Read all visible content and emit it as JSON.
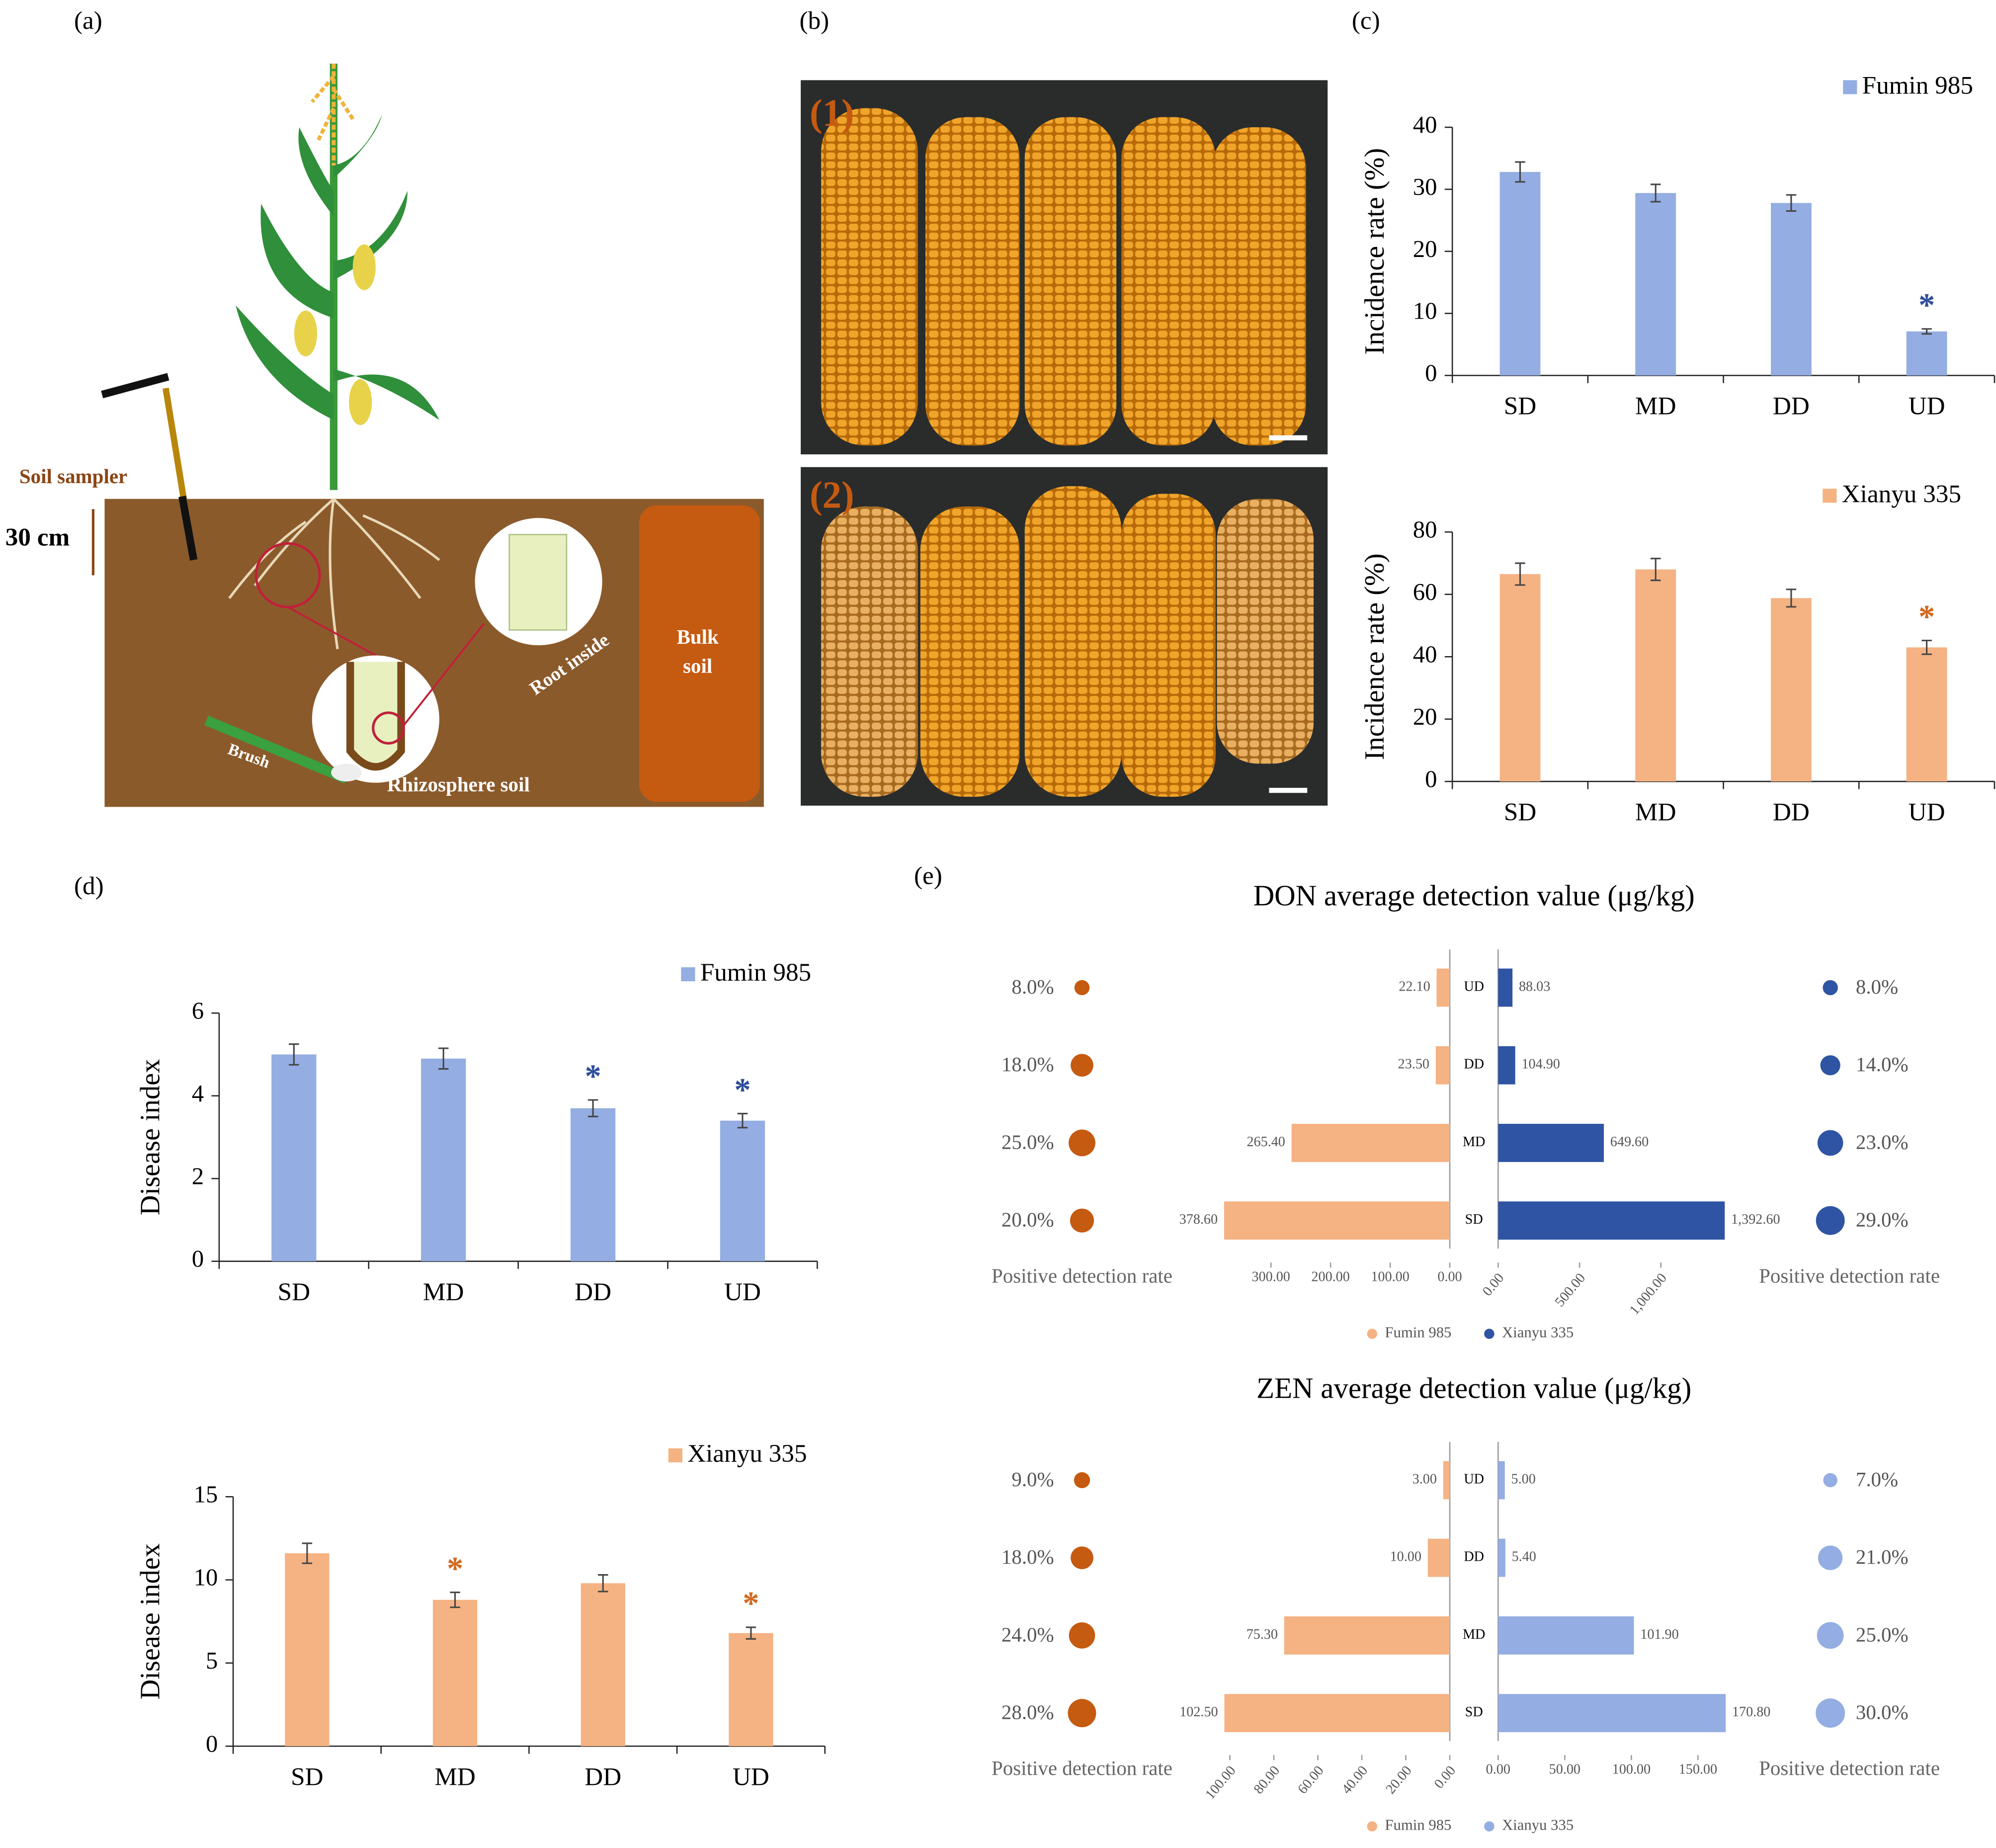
{
  "panel_labels": [
    "(a)",
    "(b)",
    "(c)",
    "(d)",
    "(e)"
  ],
  "illustration": {
    "sampler": "Soil sampler",
    "depth": "30 cm",
    "root_inside": "Root inside",
    "bulk_soil": [
      "Bulk",
      "soil"
    ],
    "brush": "Brush",
    "rhizosphere": "Rhizosphere soil"
  },
  "photo_labels": [
    "(1)",
    "(2)"
  ],
  "chart_data": [
    {
      "type": "bar",
      "ylabel": "Incidence rate (%)",
      "categories": [
        "SD",
        "MD",
        "DD",
        "UD"
      ],
      "series": [
        {
          "name": "Fumin 985",
          "color": "#94ade2",
          "values": [
            32.8,
            29.4,
            27.8,
            7.1
          ],
          "errors": [
            1.6,
            1.4,
            1.3,
            0.4
          ]
        }
      ],
      "significance": [
        null,
        null,
        null,
        "*"
      ],
      "star_color": "#2f4e9c",
      "ylim": [
        0,
        40
      ],
      "yticks": [
        0,
        10,
        20,
        30,
        40
      ]
    },
    {
      "type": "bar",
      "ylabel": "Incidence rate (%)",
      "categories": [
        "SD",
        "MD",
        "DD",
        "UD"
      ],
      "series": [
        {
          "name": "Xianyu 335",
          "color": "#f5b283",
          "values": [
            66.5,
            68,
            58.8,
            43
          ],
          "errors": [
            3.5,
            3.5,
            2.8,
            2.2
          ]
        }
      ],
      "significance": [
        null,
        null,
        null,
        "*"
      ],
      "star_color": "#d2691e",
      "ylim": [
        0,
        80
      ],
      "yticks": [
        0,
        20,
        40,
        60,
        80
      ]
    },
    {
      "type": "bar",
      "ylabel": "Disease index",
      "categories": [
        "SD",
        "MD",
        "DD",
        "UD"
      ],
      "series": [
        {
          "name": "Fumin 985",
          "color": "#94ade2",
          "values": [
            5.0,
            4.9,
            3.7,
            3.4
          ],
          "errors": [
            0.25,
            0.25,
            0.2,
            0.17
          ]
        }
      ],
      "significance": [
        null,
        null,
        "*",
        "*"
      ],
      "star_color": "#2f4e9c",
      "ylim": [
        0,
        6
      ],
      "yticks": [
        0,
        2,
        4,
        6
      ]
    },
    {
      "type": "bar",
      "ylabel": "Disease index",
      "categories": [
        "SD",
        "MD",
        "DD",
        "UD"
      ],
      "series": [
        {
          "name": "Xianyu 335",
          "color": "#f5b283",
          "values": [
            11.6,
            8.8,
            9.8,
            6.8
          ],
          "errors": [
            0.6,
            0.45,
            0.5,
            0.35
          ]
        }
      ],
      "significance": [
        null,
        "*",
        null,
        "*"
      ],
      "star_color": "#d2691e",
      "ylim": [
        0,
        15
      ],
      "yticks": [
        0,
        5,
        10,
        15
      ]
    },
    {
      "type": "butterfly",
      "title": "DON average detection value (μg/kg)",
      "categories": [
        "UD",
        "DD",
        "MD",
        "SD"
      ],
      "rate_label": "Positive detection rate",
      "series": [
        {
          "name": "Fumin 985",
          "color": "#f5b283",
          "dot_color": "#c55a11",
          "values": [
            22.1,
            23.5,
            265.4,
            378.6
          ],
          "value_labels": [
            "22.10",
            "23.50",
            "265.40",
            "378.60"
          ],
          "rates": [
            8,
            18,
            25,
            20
          ],
          "rate_labels": [
            "8.0%",
            "18.0%",
            "25.0%",
            "20.0%"
          ],
          "xlim": [
            0,
            380
          ],
          "tick_angle": 0,
          "xticks": [
            {
              "value": 0,
              "label": "0.00"
            },
            {
              "value": 100,
              "label": "100.00"
            },
            {
              "value": 200,
              "label": "200.00"
            },
            {
              "value": 300,
              "label": "300.00"
            }
          ]
        },
        {
          "name": "Xianyu 335",
          "color": "#2e54a3",
          "dot_color": "#2e54a3",
          "values": [
            88.03,
            104.9,
            649.6,
            1392.6
          ],
          "value_labels": [
            "88.03",
            "104.90",
            "649.60",
            "1,392.60"
          ],
          "rates": [
            8,
            14,
            23,
            29
          ],
          "rate_labels": [
            "8.0%",
            "14.0%",
            "23.0%",
            "29.0%"
          ],
          "xlim": [
            0,
            1400
          ],
          "tick_angle": -50,
          "xticks": [
            {
              "value": 0,
              "label": "0.00"
            },
            {
              "value": 500,
              "label": "500.00"
            },
            {
              "value": 1000,
              "label": "1,000.00"
            }
          ]
        }
      ]
    },
    {
      "type": "butterfly",
      "title": "ZEN average detection value (μg/kg)",
      "categories": [
        "UD",
        "DD",
        "MD",
        "SD"
      ],
      "rate_label": "Positive detection rate",
      "series": [
        {
          "name": "Fumin 985",
          "color": "#f5b283",
          "dot_color": "#c55a11",
          "values": [
            3.0,
            10.0,
            75.3,
            102.5
          ],
          "value_labels": [
            "3.00",
            "10.00",
            "75.30",
            "102.50"
          ],
          "rates": [
            9,
            18,
            24,
            28
          ],
          "rate_labels": [
            "9.0%",
            "18.0%",
            "24.0%",
            "28.0%"
          ],
          "xlim": [
            0,
            103
          ],
          "tick_angle": -50,
          "xticks": [
            {
              "value": 0,
              "label": "0.00"
            },
            {
              "value": 20,
              "label": "20.00"
            },
            {
              "value": 40,
              "label": "40.00"
            },
            {
              "value": 60,
              "label": "60.00"
            },
            {
              "value": 80,
              "label": "80.00"
            },
            {
              "value": 100,
              "label": "100.00"
            }
          ]
        },
        {
          "name": "Xianyu 335",
          "color": "#94ade2",
          "dot_color": "#94ade2",
          "values": [
            5.0,
            5.4,
            101.9,
            170.8
          ],
          "value_labels": [
            "5.00",
            "5.40",
            "101.90",
            "170.80"
          ],
          "rates": [
            7,
            21,
            25,
            30
          ],
          "rate_labels": [
            "7.0%",
            "21.0%",
            "25.0%",
            "30.0%"
          ],
          "xlim": [
            0,
            171
          ],
          "tick_angle": 0,
          "xticks": [
            {
              "value": 0,
              "label": "0.00"
            },
            {
              "value": 50,
              "label": "50.00"
            },
            {
              "value": 100,
              "label": "100.00"
            },
            {
              "value": 150,
              "label": "150.00"
            }
          ]
        }
      ]
    }
  ]
}
